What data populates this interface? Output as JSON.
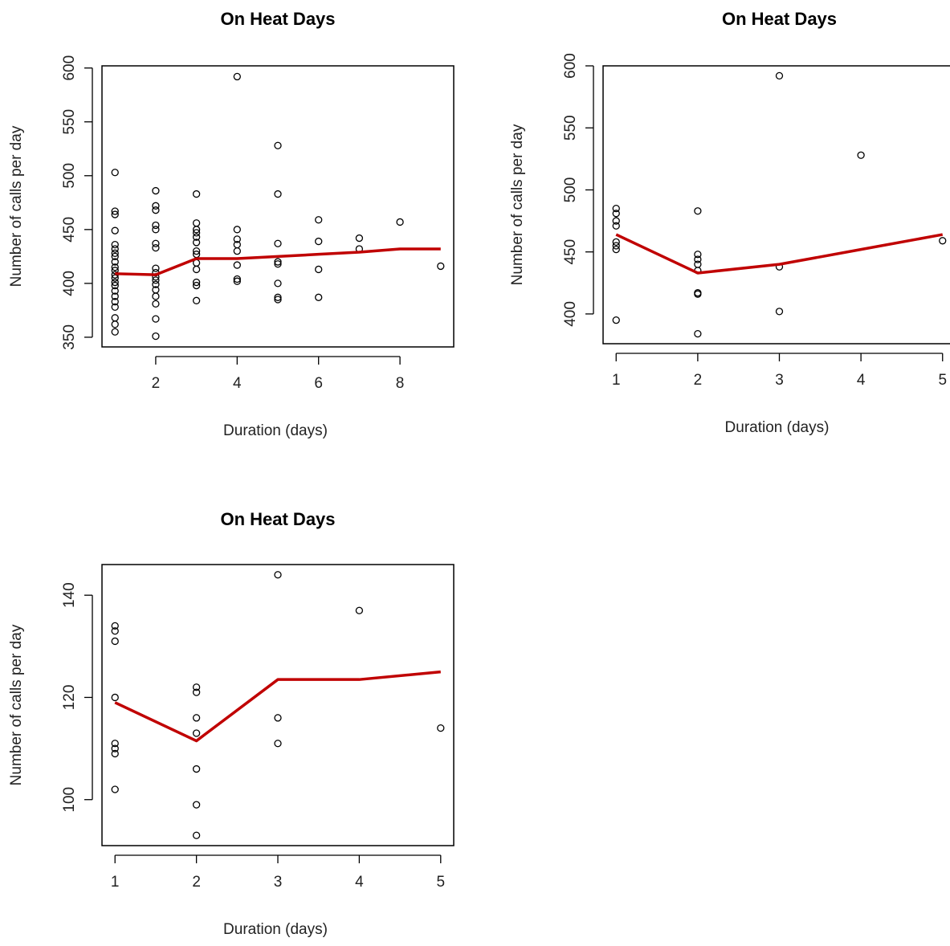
{
  "chart_data": [
    {
      "type": "scatter",
      "title": "On Heat Days",
      "x_label": "Duration (days)",
      "y_label": "Number of calls per day",
      "xlim": [
        0.68,
        9.32
      ],
      "ylim": [
        341,
        602
      ],
      "xticks": [
        2,
        4,
        6,
        8
      ],
      "yticks": [
        350,
        400,
        450,
        500,
        550,
        600
      ],
      "points": {
        "color": "#000000",
        "x": [
          1,
          1,
          1,
          1,
          1,
          1,
          1,
          1,
          1,
          1,
          1,
          1,
          1,
          1,
          1,
          1,
          1,
          1,
          1,
          1,
          1,
          1,
          2,
          2,
          2,
          2,
          2,
          2,
          2,
          2,
          2,
          2,
          2,
          2,
          2,
          2,
          2,
          2,
          2,
          3,
          3,
          3,
          3,
          3,
          3,
          3,
          3,
          3,
          3,
          3,
          3,
          3,
          4,
          4,
          4,
          4,
          4,
          4,
          4,
          4,
          5,
          5,
          5,
          5,
          5,
          5,
          5,
          5,
          6,
          6,
          6,
          6,
          7,
          7,
          8,
          9
        ],
        "y": [
          503,
          467,
          464,
          449,
          436,
          432,
          428,
          425,
          420,
          415,
          412,
          408,
          405,
          401,
          398,
          393,
          388,
          383,
          378,
          368,
          362,
          355,
          486,
          472,
          468,
          454,
          450,
          437,
          433,
          414,
          410,
          406,
          403,
          399,
          394,
          388,
          381,
          367,
          351,
          483,
          456,
          450,
          447,
          443,
          438,
          430,
          427,
          419,
          413,
          401,
          398,
          384,
          592,
          450,
          441,
          436,
          430,
          417,
          404,
          402,
          528,
          483,
          437,
          420,
          418,
          400,
          387,
          385,
          459,
          439,
          413,
          387,
          442,
          432,
          457,
          416
        ]
      },
      "line": {
        "color": "#c00000",
        "x": [
          1,
          2,
          3,
          4,
          5,
          6,
          7,
          8,
          9
        ],
        "y": [
          409,
          408,
          423,
          423,
          425,
          427,
          429,
          432,
          432
        ]
      }
    },
    {
      "type": "scatter",
      "title": "On Heat Days",
      "x_label": "Duration (days)",
      "y_label": "Number of calls per day",
      "xlim": [
        0.84,
        5.16
      ],
      "ylim": [
        376,
        600
      ],
      "xticks": [
        1,
        2,
        3,
        4,
        5
      ],
      "yticks": [
        400,
        450,
        500,
        550,
        600
      ],
      "points": {
        "color": "#000000",
        "x": [
          1,
          1,
          1,
          1,
          1,
          1,
          1,
          1,
          2,
          2,
          2,
          2,
          2,
          2,
          2,
          2,
          3,
          3,
          3,
          4,
          5
        ],
        "y": [
          485,
          481,
          475,
          471,
          458,
          455,
          452,
          395,
          483,
          448,
          444,
          440,
          435,
          417,
          416,
          384,
          592,
          438,
          402,
          528,
          459
        ]
      },
      "line": {
        "color": "#c00000",
        "x": [
          1,
          2,
          3,
          4,
          5
        ],
        "y": [
          464,
          433,
          440,
          452,
          464
        ]
      }
    },
    {
      "type": "scatter",
      "title": "On Heat Days",
      "x_label": "Duration (days)",
      "y_label": "Number of calls per day",
      "xlim": [
        0.84,
        5.16
      ],
      "ylim": [
        91,
        146
      ],
      "xticks": [
        1,
        2,
        3,
        4,
        5
      ],
      "yticks": [
        100,
        120,
        140
      ],
      "points": {
        "color": "#000000",
        "x": [
          1,
          1,
          1,
          1,
          1,
          1,
          1,
          1,
          2,
          2,
          2,
          2,
          2,
          2,
          2,
          3,
          3,
          3,
          4,
          5
        ],
        "y": [
          134,
          133,
          131,
          120,
          111,
          110,
          109,
          102,
          122,
          121,
          116,
          113,
          106,
          99,
          93,
          144,
          116,
          111,
          137,
          114
        ]
      },
      "line": {
        "color": "#c00000",
        "x": [
          1,
          2,
          3,
          4,
          5
        ],
        "y": [
          119,
          111.5,
          123.5,
          123.5,
          125
        ]
      }
    }
  ]
}
